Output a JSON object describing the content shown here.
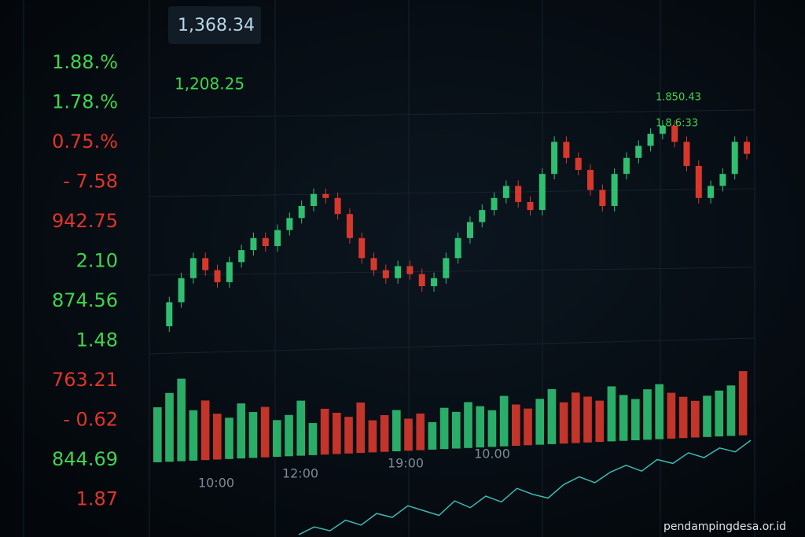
{
  "watchlist": [
    {
      "text": "1.88.%",
      "color": "#3fd44f"
    },
    {
      "text": "1.78.%",
      "color": "#3fd44f"
    },
    {
      "text": "0.75.%",
      "color": "#e0352b"
    },
    {
      "text": "- 7.58",
      "color": "#e0352b"
    },
    {
      "text": "942.75",
      "color": "#e0352b"
    },
    {
      "text": "2.10",
      "color": "#3fd44f"
    },
    {
      "text": "874.56",
      "color": "#3fd44f"
    },
    {
      "text": "1.48",
      "color": "#3fd44f"
    },
    {
      "text": "763.21",
      "color": "#e0352b"
    },
    {
      "text": "- 0.62",
      "color": "#e0352b"
    },
    {
      "text": "844.69",
      "color": "#3fd44f"
    },
    {
      "text": "1.87",
      "color": "#e0352b"
    }
  ],
  "price_boxes": [
    {
      "text": "1,368.34",
      "color": "#b9d6e6"
    },
    {
      "text": "1,208.25",
      "color": "#3fd44f"
    },
    {
      "text": "1.850.43",
      "color": "#3fd44f"
    },
    {
      "text": "1.8.6:33",
      "color": "#3fd44f"
    }
  ],
  "candles": {
    "color_up": "#2fbf71",
    "color_down": "#d8382c",
    "closes": [
      40,
      70,
      100,
      125,
      110,
      95,
      120,
      135,
      150,
      140,
      160,
      175,
      190,
      205,
      200,
      180,
      150,
      125,
      110,
      100,
      115,
      105,
      90,
      100,
      125,
      150,
      170,
      185,
      200,
      215,
      195,
      185,
      230,
      270,
      250,
      235,
      210,
      190,
      230,
      250,
      265,
      280,
      290,
      270,
      240,
      200,
      215,
      230,
      270,
      255
    ]
  },
  "volume": {
    "values": [
      60,
      75,
      90,
      55,
      65,
      50,
      45,
      60,
      50,
      55,
      40,
      45,
      60,
      35,
      50,
      45,
      40,
      55,
      35,
      40,
      45,
      35,
      40,
      30,
      45,
      40,
      50,
      45,
      40,
      55,
      45,
      40,
      50,
      60,
      45,
      55,
      50,
      45,
      60,
      50,
      45,
      55,
      60,
      50,
      45,
      40,
      45,
      50,
      55,
      70
    ]
  },
  "time_labels": [
    "10:00",
    "12:00",
    "19:00",
    "10.00"
  ],
  "trend_line": {
    "color": "#3bb8b0",
    "values": [
      10,
      18,
      14,
      25,
      20,
      32,
      28,
      40,
      35,
      30,
      45,
      38,
      50,
      44,
      58,
      52,
      48,
      62,
      70,
      64,
      75,
      82,
      76,
      88,
      84,
      95,
      90,
      100,
      96,
      108
    ]
  },
  "watermark": "pendampingdesa.or.id"
}
